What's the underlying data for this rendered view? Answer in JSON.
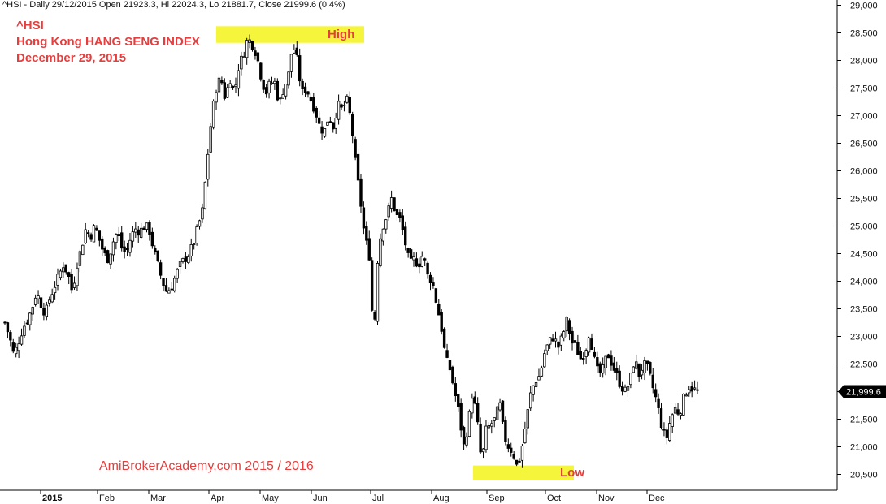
{
  "header": {
    "text": "^HSI - Daily 29/12/2015 Open 21923.3, Hi 22024.3, Lo 21881.7, Close 21999.6 (0.4%)"
  },
  "titles": {
    "symbol": "^HSI",
    "name": "Hong Kong HANG SENG INDEX",
    "date": "December 29, 2015"
  },
  "watermark": "AmiBrokerAcademy.com  2015  /  2016",
  "colors": {
    "accent": "#e53e3e",
    "highlight": "#f5f53c",
    "candle": "#000000",
    "price_tag": "#000000"
  },
  "chart_data": {
    "type": "candlestick",
    "ylim": [
      20300,
      29000
    ],
    "y_ticks": [
      "20,500",
      "21,000",
      "21,500",
      "22,000",
      "22,500",
      "23,000",
      "23,500",
      "24,000",
      "24,500",
      "25,000",
      "25,500",
      "26,000",
      "26,500",
      "27,000",
      "27,500",
      "28,000",
      "28,500",
      "29,000"
    ],
    "x_labels": [
      "2015",
      "Feb",
      "Mar",
      "Apr",
      "May",
      "Jun",
      "Jul",
      "Aug",
      "Sep",
      "Oct",
      "Nov",
      "Dec"
    ],
    "grid": false,
    "last_price_label": "21,999.6",
    "last_price": 21999.6,
    "annotations": [
      {
        "label": "High",
        "zone": [
          28320,
          28620
        ]
      },
      {
        "label": "Low",
        "zone": [
          20400,
          20660
        ]
      }
    ],
    "close_path": [
      23250,
      23000,
      22650,
      22900,
      23150,
      23300,
      23500,
      23800,
      23600,
      23400,
      23700,
      23900,
      24100,
      24300,
      24150,
      23800,
      24300,
      24600,
      24950,
      24800,
      25000,
      24750,
      24500,
      24400,
      24700,
      24900,
      24600,
      24500,
      24800,
      24950,
      24900,
      25000,
      24950,
      24600,
      24300,
      24000,
      23800,
      23900,
      24100,
      24300,
      24400,
      24500,
      24700,
      25000,
      25300,
      26200,
      27000,
      27500,
      27700,
      27300,
      27700,
      27400,
      27900,
      28100,
      28400,
      28300,
      28100,
      27700,
      27400,
      27600,
      27600,
      27200,
      27500,
      27700,
      28300,
      28000,
      27400,
      27500,
      27300,
      27100,
      26800,
      26700,
      27000,
      26800,
      27200,
      27100,
      27300,
      26900,
      26100,
      25500,
      24800,
      24500,
      22900,
      24600,
      25000,
      25200,
      25500,
      25200,
      25100,
      24700,
      24300,
      24400,
      24300,
      24500,
      24100,
      24000,
      23600,
      23200,
      22600,
      22400,
      22000,
      21600,
      21000,
      21400,
      22000,
      21500,
      20700,
      21300,
      21400,
      21500,
      21800,
      21200,
      21000,
      20900,
      20600,
      21000,
      21500,
      22000,
      22200,
      22300,
      22700,
      22900,
      23000,
      22800,
      23000,
      23300,
      22900,
      22800,
      22600,
      22700,
      23100,
      22600,
      22300,
      22400,
      22700,
      22500,
      22300,
      22100,
      22000,
      22200,
      22600,
      22300,
      22500,
      22400,
      22100,
      21800,
      21400,
      21100,
      21500,
      21700,
      21600,
      21900,
      22100,
      22050,
      21999.6
    ]
  }
}
